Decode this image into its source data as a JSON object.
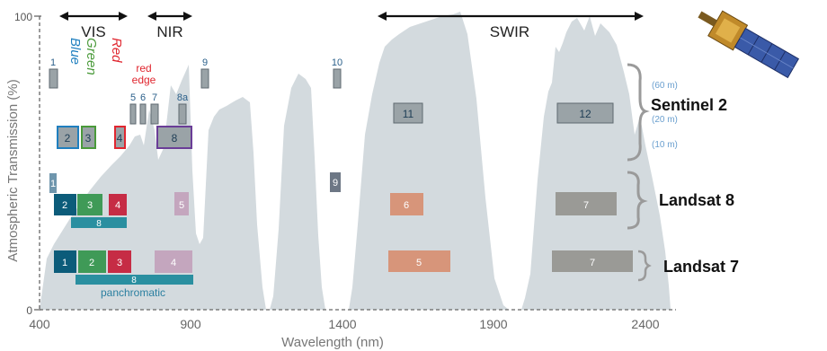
{
  "axes": {
    "xlabel": "Wavelength (nm)",
    "ylabel": "Atmospheric Transmission (%)",
    "xticks": [
      "400",
      "900",
      "1400",
      "1900",
      "2400"
    ],
    "yticks": [
      "0",
      "100"
    ]
  },
  "regions": {
    "vis": "VIS",
    "nir": "NIR",
    "swir": "SWIR"
  },
  "color_words": {
    "blue": "Blue",
    "green": "Green",
    "red": "Red",
    "red_edge_1": "red",
    "red_edge_2": "edge"
  },
  "sentinel": {
    "name": "Sentinel 2",
    "res_60": "(60 m)",
    "res_20": "(20 m)",
    "res_10": "(10 m)",
    "band_1": "1",
    "band_2": "2",
    "band_3": "3",
    "band_4": "4",
    "band_5": "5",
    "band_6": "6",
    "band_7": "7",
    "band_8": "8",
    "band_8a": "8a",
    "band_9": "9",
    "band_10": "10",
    "band_11": "11",
    "band_12": "12"
  },
  "landsat8": {
    "name": "Landsat 8",
    "band_1": "1",
    "band_2": "2",
    "band_3": "3",
    "band_4": "4",
    "band_5": "5",
    "band_6": "6",
    "band_7": "7",
    "band_8": "8",
    "band_9": "9"
  },
  "landsat7": {
    "name": "Landsat 7",
    "band_1": "1",
    "band_2": "2",
    "band_3": "3",
    "band_4": "4",
    "band_5": "5",
    "band_7": "7",
    "band_8": "8",
    "pan": "panchromatic"
  },
  "colors": {
    "transmission": "#d3dade",
    "blue": "#1f7fbf",
    "green": "#4a9a3a",
    "red": "#e0262f",
    "l_blue": "#0c5c7a",
    "l_green": "#3f9a57",
    "l_red": "#c62c45",
    "l_nir": "#c4a6be",
    "l_swir1": "#d7957a",
    "l_swir2": "#9a9a96",
    "teal": "#2a8fa0",
    "s_gray": "#9aa3a7",
    "purple": "#6a3d97"
  }
}
